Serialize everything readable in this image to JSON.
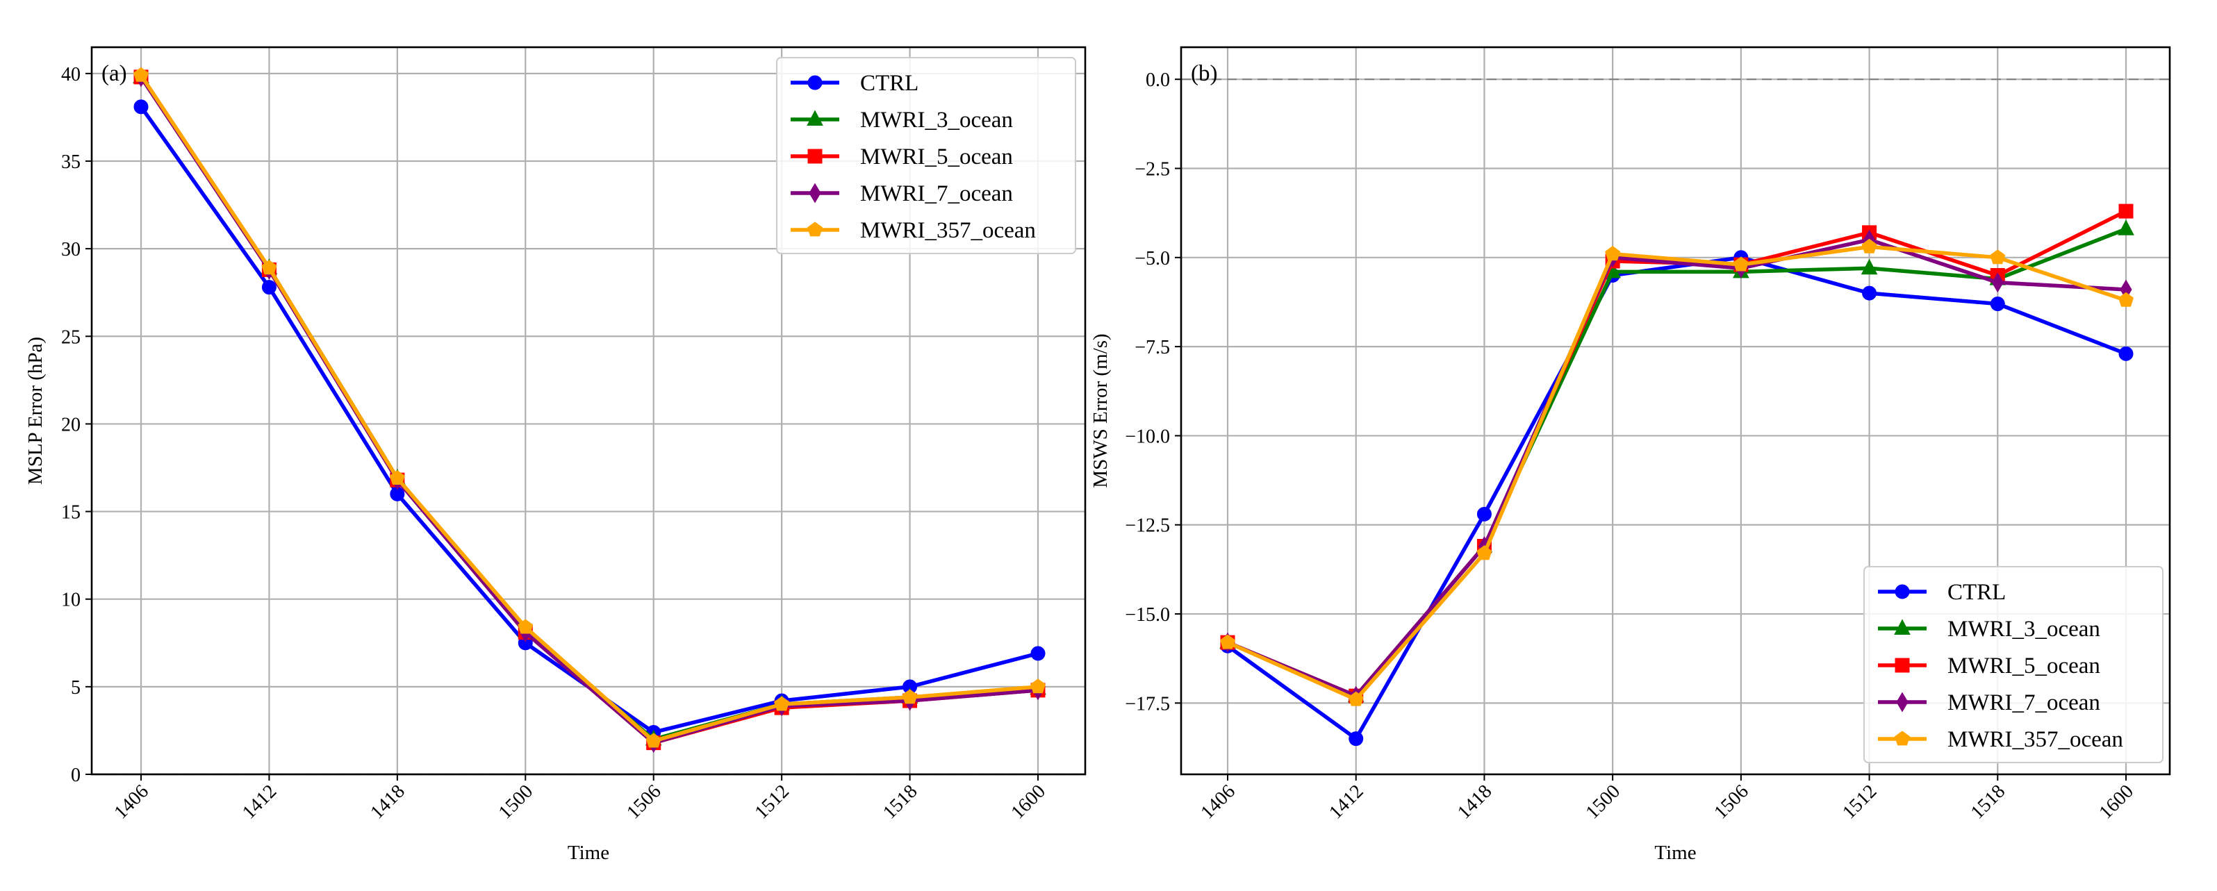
{
  "chart_data": [
    {
      "panel": "(a)",
      "type": "line",
      "xlabel": "Time",
      "ylabel": "MSLP Error (hPa)",
      "categories": [
        "1406",
        "1412",
        "1418",
        "1500",
        "1506",
        "1512",
        "1518",
        "1600"
      ],
      "ylim": [
        0,
        41.5
      ],
      "yticks": [
        0,
        5,
        10,
        15,
        20,
        25,
        30,
        35,
        40
      ],
      "yticklabels": [
        "0",
        "5",
        "10",
        "15",
        "20",
        "25",
        "30",
        "35",
        "40"
      ],
      "reference_line": 0,
      "grid": true,
      "legend_position": "upper right",
      "series": [
        {
          "name": "CTRL",
          "color": "#0000ff",
          "marker": "circle",
          "values": [
            38.1,
            27.8,
            16.0,
            7.5,
            2.4,
            4.2,
            5.0,
            6.9
          ]
        },
        {
          "name": "MWRI_3_ocean",
          "color": "#008000",
          "marker": "triangle",
          "values": [
            39.8,
            28.9,
            16.9,
            8.2,
            2.0,
            4.0,
            4.4,
            4.9
          ]
        },
        {
          "name": "MWRI_5_ocean",
          "color": "#ff0000",
          "marker": "square",
          "values": [
            39.8,
            28.8,
            16.8,
            8.1,
            1.8,
            3.8,
            4.2,
            4.8
          ]
        },
        {
          "name": "MWRI_7_ocean",
          "color": "#800080",
          "marker": "diamond",
          "values": [
            39.8,
            28.8,
            16.8,
            8.1,
            1.8,
            3.9,
            4.2,
            4.8
          ]
        },
        {
          "name": "MWRI_357_ocean",
          "color": "#ffa500",
          "marker": "pentagon",
          "values": [
            39.9,
            28.9,
            16.9,
            8.4,
            1.9,
            4.0,
            4.4,
            5.0
          ]
        }
      ]
    },
    {
      "panel": "(b)",
      "type": "line",
      "xlabel": "Time",
      "ylabel": "MSWS Error (m/s)",
      "categories": [
        "1406",
        "1412",
        "1418",
        "1500",
        "1506",
        "1512",
        "1518",
        "1600"
      ],
      "ylim": [
        -19.5,
        0.9
      ],
      "yticks": [
        0,
        -2.5,
        -5,
        -7.5,
        -10,
        -12.5,
        -15,
        -17.5
      ],
      "yticklabels": [
        "0.0",
        "−2.5",
        "−5.0",
        "−7.5",
        "−10.0",
        "−12.5",
        "−15.0",
        "−17.5"
      ],
      "reference_line": 0,
      "grid": true,
      "legend_position": "lower right",
      "series": [
        {
          "name": "CTRL",
          "color": "#0000ff",
          "marker": "circle",
          "values": [
            -15.9,
            -18.5,
            -12.2,
            -5.5,
            -5.0,
            -6.0,
            -6.3,
            -7.7
          ]
        },
        {
          "name": "MWRI_3_ocean",
          "color": "#008000",
          "marker": "triangle",
          "values": [
            -15.8,
            -17.3,
            -13.1,
            -5.4,
            -5.4,
            -5.3,
            -5.6,
            -4.2
          ]
        },
        {
          "name": "MWRI_5_ocean",
          "color": "#ff0000",
          "marker": "square",
          "values": [
            -15.8,
            -17.3,
            -13.1,
            -5.1,
            -5.2,
            -4.3,
            -5.5,
            -3.7
          ]
        },
        {
          "name": "MWRI_7_ocean",
          "color": "#800080",
          "marker": "diamond",
          "values": [
            -15.8,
            -17.3,
            -13.1,
            -5.0,
            -5.3,
            -4.5,
            -5.7,
            -5.9
          ]
        },
        {
          "name": "MWRI_357_ocean",
          "color": "#ffa500",
          "marker": "pentagon",
          "values": [
            -15.8,
            -17.4,
            -13.3,
            -4.9,
            -5.2,
            -4.7,
            -5.0,
            -6.2
          ]
        }
      ]
    }
  ]
}
